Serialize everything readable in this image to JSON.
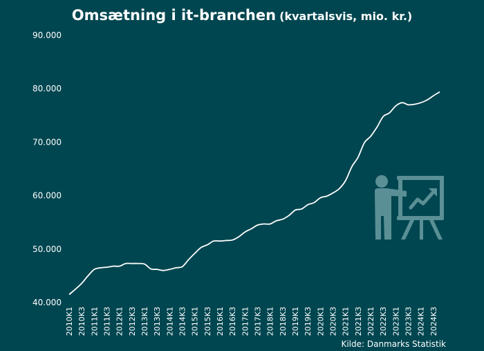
{
  "title": "Omsætning i it-branchen",
  "subtitle": "(kvartalsvis, mio. kr.)",
  "source": "Kilde: Danmarks Statistik",
  "colors": {
    "background": "#004650",
    "line": "#ffffff",
    "icon": "#5b8f96"
  },
  "chart_data": {
    "type": "line",
    "title": "Omsætning i it-branchen",
    "subtitle": "(kvartalsvis, mio. kr.)",
    "xlabel": "",
    "ylabel": "",
    "ylim": [
      40000,
      90000
    ],
    "yticks": [
      40000,
      50000,
      60000,
      70000,
      80000,
      90000
    ],
    "ytick_labels": [
      "40.000",
      "50.000",
      "60.000",
      "70.000",
      "80.000",
      "90.000"
    ],
    "xtick_labels": [
      "2010K1",
      "2010K3",
      "2011K1",
      "2011K3",
      "2012K1",
      "2012K3",
      "2013K1",
      "2013K3",
      "2014K1",
      "2014K3",
      "2015K1",
      "2015K3",
      "2016K1",
      "2016K3",
      "2017K1",
      "2017K3",
      "2018K1",
      "2018K3",
      "2019K1",
      "2019K3",
      "2020K1",
      "2020K3",
      "2021K1",
      "2021K3",
      "2022K1",
      "2022K3",
      "2023K1",
      "2023K3",
      "2024K1",
      "2024K3"
    ],
    "grid": false,
    "series": [
      {
        "name": "Omsætning",
        "values": [
          41500,
          42500,
          43600,
          45000,
          46200,
          46500,
          46600,
          46800,
          46800,
          47300,
          47300,
          47300,
          47200,
          46300,
          46200,
          46000,
          46200,
          46500,
          46700,
          48000,
          49200,
          50300,
          50800,
          51500,
          51500,
          51600,
          51700,
          52300,
          53200,
          53800,
          54500,
          54700,
          54700,
          55300,
          55600,
          56300,
          57300,
          57500,
          58300,
          58700,
          59600,
          59900,
          60500,
          61300,
          62800,
          65400,
          67200,
          69900,
          71100,
          72800,
          74800,
          75500,
          76800,
          77400,
          77000,
          77100,
          77400,
          77900,
          78700,
          79400
        ]
      }
    ]
  }
}
